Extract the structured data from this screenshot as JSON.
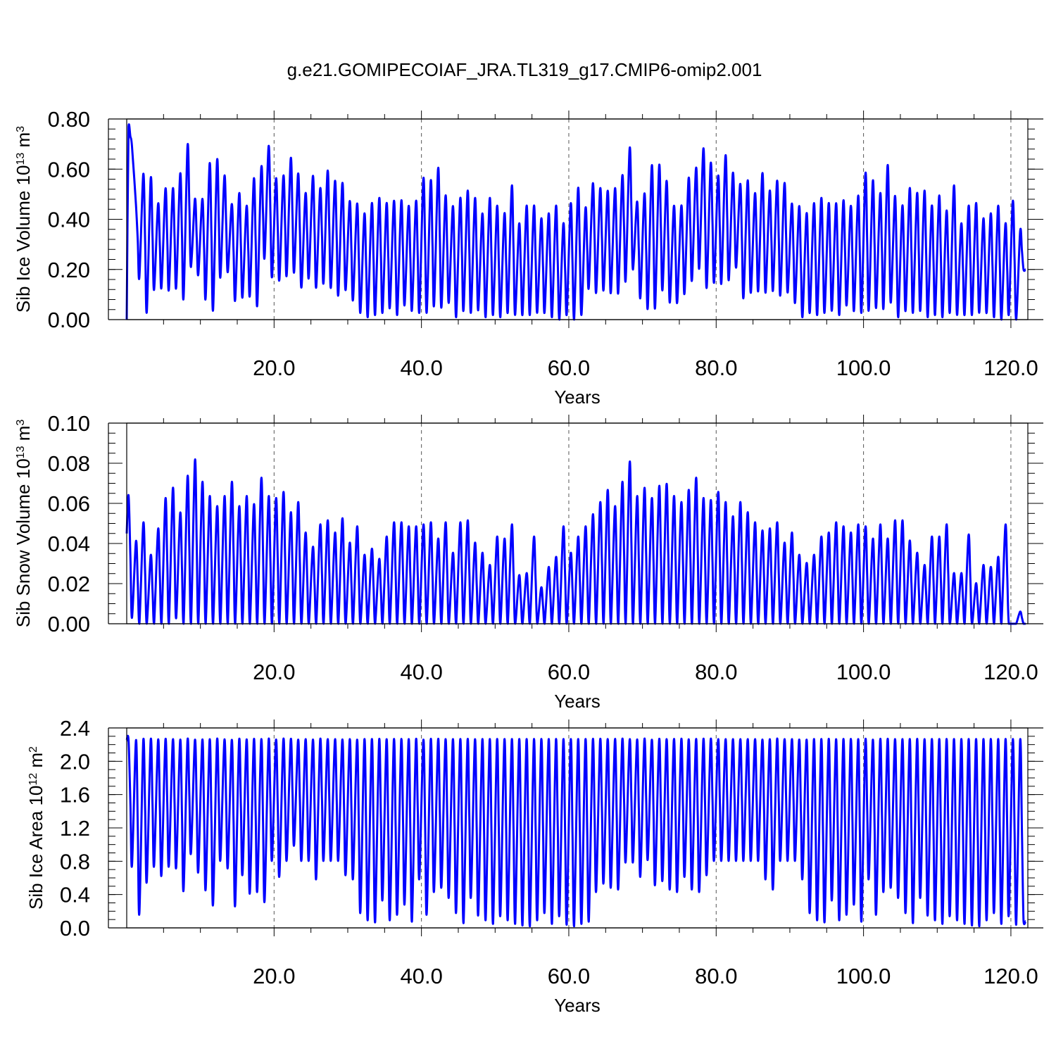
{
  "title": "g.e21.GOMIPECOIAF_JRA.TL319_g17.CMIP6-omip2.001",
  "colors": {
    "series": "#0000ff",
    "axis": "#000000",
    "grid": "#555555"
  },
  "chart_data": [
    {
      "type": "line",
      "ylabel_main": "Sib Ice Volume 10",
      "ylabel_exp": "13",
      "ylabel_unit": " m",
      "ylabel_unit_exp": "3",
      "xlabel": "Years",
      "xlim": [
        0,
        122.3
      ],
      "ylim": [
        0,
        0.8
      ],
      "x_major_ticks": [
        20,
        40,
        60,
        80,
        100,
        120
      ],
      "x_tick_labels": [
        "20.0",
        "40.0",
        "60.0",
        "80.0",
        "100.0",
        "120.0"
      ],
      "y_major_ticks": [
        0,
        0.2,
        0.4,
        0.6,
        0.8
      ],
      "y_tick_labels": [
        "0.00",
        "0.20",
        "0.40",
        "0.60",
        "0.80"
      ],
      "y_minor_step": 0.04,
      "x_grid": true,
      "series": [
        {
          "start": 0,
          "years": 122,
          "annual_max": [
            0.77,
            0.46,
            0.58,
            0.56,
            0.46,
            0.52,
            0.52,
            0.58,
            0.69,
            0.48,
            0.48,
            0.62,
            0.63,
            0.57,
            0.46,
            0.5,
            0.45,
            0.56,
            0.6,
            0.69,
            0.56,
            0.57,
            0.64,
            0.58,
            0.5,
            0.57,
            0.52,
            0.59,
            0.55,
            0.54,
            0.47,
            0.46,
            0.42,
            0.46,
            0.48,
            0.46,
            0.47,
            0.47,
            0.45,
            0.47,
            0.56,
            0.55,
            0.6,
            0.49,
            0.45,
            0.48,
            0.51,
            0.48,
            0.42,
            0.48,
            0.45,
            0.42,
            0.53,
            0.38,
            0.45,
            0.45,
            0.4,
            0.42,
            0.45,
            0.38,
            0.46,
            0.52,
            0.44,
            0.54,
            0.52,
            0.51,
            0.52,
            0.57,
            0.68,
            0.47,
            0.5,
            0.61,
            0.61,
            0.55,
            0.45,
            0.45,
            0.56,
            0.6,
            0.68,
            0.62,
            0.57,
            0.65,
            0.58,
            0.54,
            0.55,
            0.5,
            0.58,
            0.51,
            0.55,
            0.54,
            0.46,
            0.45,
            0.42,
            0.46,
            0.48,
            0.46,
            0.46,
            0.47,
            0.45,
            0.49,
            0.58,
            0.55,
            0.5,
            0.61,
            0.49,
            0.45,
            0.52,
            0.5,
            0.51,
            0.45,
            0.49,
            0.43,
            0.53,
            0.38,
            0.45,
            0.46,
            0.4,
            0.42,
            0.45,
            0.38,
            0.47,
            0.35
          ],
          "annual_min": [
            0.69,
            0.17,
            0.03,
            0.12,
            0.13,
            0.12,
            0.13,
            0.09,
            0.21,
            0.18,
            0.09,
            0.04,
            0.17,
            0.19,
            0.08,
            0.09,
            0.1,
            0.06,
            0.25,
            0.17,
            0.16,
            0.18,
            0.19,
            0.13,
            0.17,
            0.13,
            0.15,
            0.13,
            0.1,
            0.12,
            0.08,
            0.03,
            0.01,
            0.02,
            0.03,
            0.05,
            0.02,
            0.06,
            0.04,
            0.03,
            0.03,
            0.06,
            0.05,
            0.07,
            0.01,
            0.04,
            0.03,
            0.04,
            0.01,
            0.02,
            0.01,
            0.03,
            0.02,
            0.02,
            0.02,
            0.03,
            0.03,
            0.01,
            0.0,
            0.02,
            0.0,
            0.02,
            0.13,
            0.11,
            0.12,
            0.11,
            0.11,
            0.16,
            0.2,
            0.09,
            0.05,
            0.05,
            0.12,
            0.07,
            0.07,
            0.11,
            0.16,
            0.21,
            0.13,
            0.15,
            0.15,
            0.16,
            0.21,
            0.09,
            0.11,
            0.12,
            0.11,
            0.12,
            0.1,
            0.11,
            0.07,
            0.01,
            0.03,
            0.02,
            0.03,
            0.04,
            0.02,
            0.06,
            0.04,
            0.03,
            0.04,
            0.05,
            0.05,
            0.07,
            0.01,
            0.04,
            0.03,
            0.04,
            0.01,
            0.02,
            0.01,
            0.03,
            0.02,
            0.02,
            0.02,
            0.03,
            0.03,
            0.01,
            0.0,
            0.02,
            0.0,
            0.2
          ]
        }
      ]
    },
    {
      "type": "line",
      "ylabel_main": "Sib Snow Volume 10",
      "ylabel_exp": "13",
      "ylabel_unit": " m",
      "ylabel_unit_exp": "3",
      "xlabel": "Years",
      "xlim": [
        0,
        122.3
      ],
      "ylim": [
        0,
        0.1
      ],
      "x_major_ticks": [
        20,
        40,
        60,
        80,
        100,
        120
      ],
      "x_tick_labels": [
        "20.0",
        "40.0",
        "60.0",
        "80.0",
        "100.0",
        "120.0"
      ],
      "y_major_ticks": [
        0,
        0.02,
        0.04,
        0.06,
        0.08,
        0.1
      ],
      "y_tick_labels": [
        "0.00",
        "0.02",
        "0.04",
        "0.06",
        "0.08",
        "0.10"
      ],
      "y_minor_step": 0.005,
      "x_grid": true,
      "series": [
        {
          "start": 0.045,
          "years": 122,
          "annual_max": [
            0.064,
            0.041,
            0.05,
            0.034,
            0.047,
            0.062,
            0.067,
            0.055,
            0.073,
            0.081,
            0.07,
            0.063,
            0.058,
            0.063,
            0.07,
            0.058,
            0.063,
            0.059,
            0.072,
            0.063,
            0.062,
            0.065,
            0.055,
            0.06,
            0.045,
            0.038,
            0.049,
            0.051,
            0.045,
            0.052,
            0.04,
            0.048,
            0.034,
            0.037,
            0.032,
            0.043,
            0.05,
            0.05,
            0.048,
            0.048,
            0.049,
            0.05,
            0.042,
            0.05,
            0.035,
            0.05,
            0.051,
            0.04,
            0.035,
            0.029,
            0.043,
            0.042,
            0.049,
            0.024,
            0.025,
            0.043,
            0.018,
            0.028,
            0.033,
            0.048,
            0.035,
            0.043,
            0.048,
            0.054,
            0.06,
            0.066,
            0.058,
            0.07,
            0.08,
            0.063,
            0.067,
            0.062,
            0.068,
            0.069,
            0.063,
            0.06,
            0.066,
            0.072,
            0.062,
            0.061,
            0.065,
            0.06,
            0.053,
            0.06,
            0.055,
            0.05,
            0.046,
            0.047,
            0.05,
            0.04,
            0.045,
            0.034,
            0.03,
            0.034,
            0.043,
            0.045,
            0.05,
            0.048,
            0.045,
            0.049,
            0.048,
            0.042,
            0.049,
            0.042,
            0.051,
            0.051,
            0.041,
            0.035,
            0.029,
            0.043,
            0.043,
            0.049,
            0.025,
            0.025,
            0.044,
            0.02,
            0.029,
            0.028,
            0.033,
            0.049,
            0.0,
            0.006
          ],
          "annual_min": [
            0.003,
            0.0,
            0.0,
            0.0,
            0.0,
            0.0,
            0.003,
            0.0,
            0.0,
            0.0,
            0.0,
            0.0,
            0.0,
            0.0,
            0.0,
            0.0,
            0.0,
            0.0,
            0.0,
            0.0,
            0.0,
            0.0,
            0.0,
            0.0,
            0.0,
            0.0,
            0.0,
            0.0,
            0.0,
            0.0,
            0.0,
            0.0,
            0.0,
            0.0,
            0.0,
            0.0,
            0.0,
            0.0,
            0.0,
            0.0,
            0.0,
            0.0,
            0.0,
            0.0,
            0.0,
            0.0,
            0.0,
            0.0,
            0.0,
            0.0,
            0.0,
            0.0,
            0.0,
            0.0,
            0.0,
            0.0,
            0.0,
            0.0,
            0.0,
            0.0,
            0.0,
            0.0,
            0.0,
            0.0,
            0.0,
            0.0,
            0.0,
            0.0,
            0.0,
            0.0,
            0.0,
            0.0,
            0.0,
            0.0,
            0.0,
            0.0,
            0.0,
            0.0,
            0.0,
            0.0,
            0.0,
            0.0,
            0.0,
            0.0,
            0.0,
            0.0,
            0.0,
            0.0,
            0.0,
            0.0,
            0.0,
            0.0,
            0.0,
            0.0,
            0.0,
            0.0,
            0.0,
            0.0,
            0.0,
            0.0,
            0.0,
            0.0,
            0.0,
            0.0,
            0.0,
            0.0,
            0.0,
            0.0,
            0.0,
            0.0,
            0.0,
            0.0,
            0.0,
            0.0,
            0.0,
            0.0,
            0.0,
            0.0,
            0.0,
            0.0,
            0.0,
            0.0
          ]
        }
      ]
    },
    {
      "type": "line",
      "ylabel_main": "Sib Ice Area 10",
      "ylabel_exp": "12",
      "ylabel_unit": " m",
      "ylabel_unit_exp": "2",
      "xlabel": "Years",
      "xlim": [
        0,
        122.3
      ],
      "ylim": [
        0,
        2.4
      ],
      "x_major_ticks": [
        20,
        40,
        60,
        80,
        100,
        120
      ],
      "x_tick_labels": [
        "20.0",
        "40.0",
        "60.0",
        "80.0",
        "100.0",
        "120.0"
      ],
      "y_major_ticks": [
        0,
        0.4,
        0.8,
        1.2,
        1.6,
        2.0,
        2.4
      ],
      "y_tick_labels": [
        "0.0",
        "0.4",
        "0.8",
        "1.2",
        "1.6",
        "2.0",
        "2.4"
      ],
      "y_minor_step": 0.1,
      "x_grid": true,
      "series": [
        {
          "start": 2.25,
          "years": 122,
          "annual_max": [
            2.25,
            2.25,
            2.25,
            2.25,
            2.25,
            2.25,
            2.25,
            2.25,
            2.25,
            2.25,
            2.25,
            2.25,
            2.25,
            2.25,
            2.25,
            2.25,
            2.25,
            2.25,
            2.25,
            2.25,
            2.25,
            2.25,
            2.25,
            2.25,
            2.25,
            2.25,
            2.25,
            2.25,
            2.25,
            2.25,
            2.25,
            2.25,
            2.25,
            2.25,
            2.25,
            2.25,
            2.25,
            2.25,
            2.25,
            2.25,
            2.25,
            2.25,
            2.25,
            2.25,
            2.25,
            2.25,
            2.25,
            2.25,
            2.25,
            2.25,
            2.25,
            2.25,
            2.25,
            2.25,
            2.25,
            2.25,
            2.25,
            2.25,
            2.25,
            2.25,
            2.25,
            2.25,
            2.25,
            2.25,
            2.25,
            2.25,
            2.25,
            2.25,
            2.25,
            2.25,
            2.25,
            2.25,
            2.25,
            2.25,
            2.25,
            2.25,
            2.25,
            2.25,
            2.25,
            2.25,
            2.25,
            2.25,
            2.25,
            2.25,
            2.25,
            2.25,
            2.25,
            2.25,
            2.25,
            2.25,
            2.25,
            2.25,
            2.25,
            2.25,
            2.25,
            2.25,
            2.25,
            2.25,
            2.25,
            2.25,
            2.25,
            2.25,
            2.25,
            2.25,
            2.25,
            2.25,
            2.25,
            2.25,
            2.25,
            2.25,
            2.25,
            2.25,
            2.25,
            2.25,
            2.25,
            2.25,
            2.25,
            2.25,
            2.25,
            2.25,
            2.25,
            2.25
          ],
          "annual_min": [
            0.75,
            0.18,
            0.56,
            0.75,
            0.64,
            0.75,
            0.73,
            0.46,
            0.9,
            0.68,
            0.47,
            0.29,
            0.82,
            0.73,
            0.28,
            0.65,
            0.43,
            0.45,
            0.33,
            0.82,
            0.63,
            0.82,
            1.0,
            0.82,
            0.82,
            0.6,
            0.82,
            0.82,
            0.82,
            0.65,
            0.6,
            0.2,
            0.1,
            0.07,
            0.35,
            0.1,
            0.18,
            0.3,
            0.08,
            0.6,
            0.18,
            0.45,
            0.5,
            0.38,
            0.2,
            0.06,
            0.38,
            0.17,
            0.1,
            0.05,
            0.16,
            0.1,
            0.05,
            0.03,
            0.02,
            0.1,
            0.2,
            0.05,
            0.16,
            0.04,
            0.02,
            0.05,
            0.08,
            0.45,
            0.55,
            0.5,
            0.48,
            0.8,
            0.8,
            0.63,
            0.83,
            0.53,
            0.58,
            0.48,
            0.45,
            0.63,
            0.48,
            0.45,
            0.65,
            0.82,
            0.82,
            0.82,
            0.82,
            0.82,
            0.82,
            0.82,
            0.6,
            0.48,
            0.82,
            0.82,
            0.82,
            0.6,
            0.2,
            0.1,
            0.07,
            0.35,
            0.1,
            0.18,
            0.3,
            0.08,
            0.6,
            0.18,
            0.45,
            0.5,
            0.38,
            0.2,
            0.06,
            0.38,
            0.17,
            0.1,
            0.05,
            0.16,
            0.1,
            0.05,
            0.03,
            0.02,
            0.1,
            0.2,
            0.05,
            0.16,
            0.04,
            0.08
          ]
        }
      ]
    }
  ]
}
